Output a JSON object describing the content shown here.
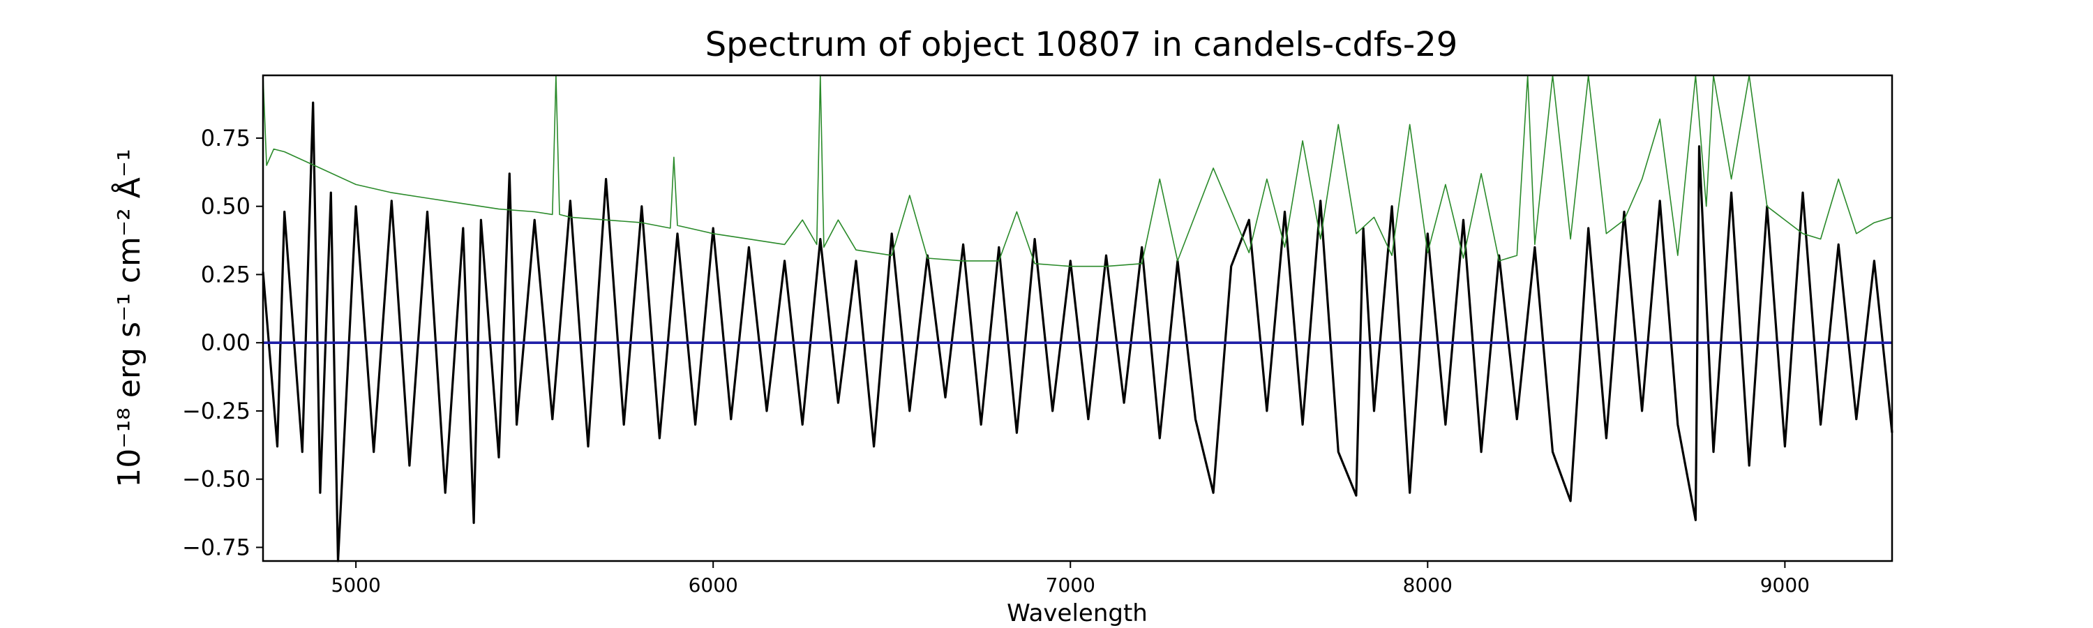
{
  "chart_data": {
    "type": "line",
    "title": "Spectrum of object 10807 in candels-cdfs-29",
    "xlabel": "Wavelength",
    "ylabel": "10⁻¹⁸ erg s⁻¹ cm⁻² Å⁻¹",
    "xlim": [
      4740,
      9300
    ],
    "ylim": [
      -0.8,
      0.98
    ],
    "xticks": [
      5000,
      6000,
      7000,
      8000,
      9000
    ],
    "xtick_labels": [
      "5000",
      "6000",
      "7000",
      "8000",
      "9000"
    ],
    "yticks": [
      -0.75,
      -0.5,
      -0.25,
      0.0,
      0.25,
      0.5,
      0.75
    ],
    "ytick_labels": [
      "−0.75",
      "−0.50",
      "−0.25",
      "0.00",
      "0.25",
      "0.50",
      "0.75"
    ],
    "grid": false,
    "series": [
      {
        "color": "#000000",
        "x": [
          4740,
          4780,
          4800,
          4850,
          4880,
          4900,
          4930,
          4950,
          5000,
          5050,
          5100,
          5150,
          5200,
          5250,
          5300,
          5330,
          5350,
          5400,
          5430,
          5450,
          5500,
          5550,
          5600,
          5650,
          5700,
          5750,
          5800,
          5850,
          5900,
          5950,
          6000,
          6050,
          6100,
          6150,
          6200,
          6250,
          6300,
          6350,
          6400,
          6450,
          6500,
          6550,
          6600,
          6650,
          6700,
          6750,
          6800,
          6850,
          6900,
          6950,
          7000,
          7050,
          7100,
          7150,
          7200,
          7250,
          7300,
          7350,
          7400,
          7450,
          7500,
          7550,
          7600,
          7650,
          7700,
          7750,
          7800,
          7820,
          7850,
          7900,
          7950,
          8000,
          8050,
          8100,
          8150,
          8200,
          8250,
          8300,
          8350,
          8400,
          8450,
          8500,
          8550,
          8600,
          8650,
          8700,
          8750,
          8760,
          8800,
          8850,
          8900,
          8950,
          9000,
          9050,
          9100,
          9150,
          9200,
          9250,
          9300
        ],
        "y": [
          0.26,
          -0.38,
          0.48,
          -0.4,
          0.88,
          -0.55,
          0.55,
          -0.8,
          0.5,
          -0.4,
          0.52,
          -0.45,
          0.48,
          -0.55,
          0.42,
          -0.66,
          0.45,
          -0.42,
          0.62,
          -0.3,
          0.45,
          -0.28,
          0.52,
          -0.38,
          0.6,
          -0.3,
          0.5,
          -0.35,
          0.4,
          -0.3,
          0.42,
          -0.28,
          0.35,
          -0.25,
          0.3,
          -0.3,
          0.38,
          -0.22,
          0.3,
          -0.38,
          0.4,
          -0.25,
          0.32,
          -0.2,
          0.36,
          -0.3,
          0.35,
          -0.33,
          0.38,
          -0.25,
          0.3,
          -0.28,
          0.32,
          -0.22,
          0.35,
          -0.35,
          0.3,
          -0.28,
          -0.55,
          0.28,
          0.45,
          -0.25,
          0.48,
          -0.3,
          0.52,
          -0.4,
          -0.56,
          0.42,
          -0.25,
          0.5,
          -0.55,
          0.4,
          -0.3,
          0.45,
          -0.4,
          0.32,
          -0.28,
          0.35,
          -0.4,
          -0.58,
          0.42,
          -0.35,
          0.48,
          -0.25,
          0.52,
          -0.3,
          -0.65,
          0.72,
          -0.4,
          0.55,
          -0.45,
          0.5,
          -0.38,
          0.55,
          -0.3,
          0.36,
          -0.28,
          0.3,
          -0.33
        ]
      },
      {
        "color": "#2a8a2a",
        "x": [
          4740,
          4750,
          4770,
          4800,
          4900,
          5000,
          5100,
          5200,
          5300,
          5400,
          5500,
          5550,
          5560,
          5570,
          5600,
          5700,
          5800,
          5880,
          5890,
          5900,
          6000,
          6100,
          6200,
          6250,
          6290,
          6300,
          6310,
          6350,
          6400,
          6500,
          6550,
          6600,
          6700,
          6800,
          6850,
          6900,
          7000,
          7100,
          7200,
          7250,
          7300,
          7400,
          7500,
          7550,
          7600,
          7650,
          7700,
          7750,
          7800,
          7850,
          7900,
          7950,
          8000,
          8050,
          8100,
          8150,
          8200,
          8250,
          8280,
          8300,
          8350,
          8400,
          8450,
          8500,
          8550,
          8600,
          8650,
          8700,
          8750,
          8780,
          8800,
          8850,
          8900,
          8950,
          9000,
          9050,
          9100,
          9150,
          9200,
          9250,
          9300
        ],
        "y": [
          0.98,
          0.65,
          0.71,
          0.7,
          0.64,
          0.58,
          0.55,
          0.53,
          0.51,
          0.49,
          0.48,
          0.47,
          0.98,
          0.47,
          0.46,
          0.45,
          0.44,
          0.42,
          0.68,
          0.43,
          0.4,
          0.38,
          0.36,
          0.45,
          0.36,
          0.98,
          0.35,
          0.45,
          0.34,
          0.32,
          0.54,
          0.31,
          0.3,
          0.3,
          0.48,
          0.29,
          0.28,
          0.28,
          0.29,
          0.6,
          0.3,
          0.64,
          0.33,
          0.6,
          0.35,
          0.74,
          0.38,
          0.8,
          0.4,
          0.46,
          0.32,
          0.8,
          0.33,
          0.58,
          0.31,
          0.62,
          0.3,
          0.32,
          0.98,
          0.36,
          0.98,
          0.38,
          0.98,
          0.4,
          0.45,
          0.6,
          0.82,
          0.32,
          0.98,
          0.5,
          0.98,
          0.6,
          0.98,
          0.5,
          0.45,
          0.4,
          0.38,
          0.6,
          0.4,
          0.44,
          0.46
        ]
      },
      {
        "color": "#1f1fa8",
        "x": [
          4740,
          9300
        ],
        "y": [
          0.0,
          0.0
        ]
      }
    ]
  }
}
